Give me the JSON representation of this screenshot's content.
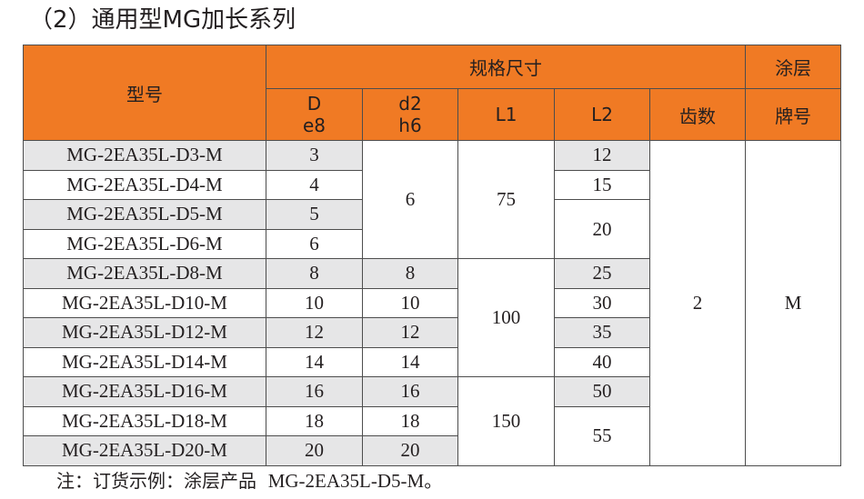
{
  "title": "（2）通用型MG加长系列",
  "table": {
    "header": {
      "model": "型号",
      "spec_group": "规格尺寸",
      "coating_group": "涂层",
      "D_name": "D",
      "D_tol": "e8",
      "d2_name": "d2",
      "d2_tol": "h6",
      "L1": "L1",
      "L2": "L2",
      "teeth": "齿数",
      "coating_brand": "牌号"
    },
    "rows": [
      {
        "model": "MG-2EA35L-D3-M",
        "D": "3"
      },
      {
        "model": "MG-2EA35L-D4-M",
        "D": "4"
      },
      {
        "model": "MG-2EA35L-D5-M",
        "D": "5"
      },
      {
        "model": "MG-2EA35L-D6-M",
        "D": "6"
      },
      {
        "model": "MG-2EA35L-D8-M",
        "D": "8",
        "d2": "8"
      },
      {
        "model": "MG-2EA35L-D10-M",
        "D": "10",
        "d2": "10"
      },
      {
        "model": "MG-2EA35L-D12-M",
        "D": "12",
        "d2": "12"
      },
      {
        "model": "MG-2EA35L-D14-M",
        "D": "14",
        "d2": "14"
      },
      {
        "model": "MG-2EA35L-D16-M",
        "D": "16",
        "d2": "16"
      },
      {
        "model": "MG-2EA35L-D18-M",
        "D": "18",
        "d2": "18"
      },
      {
        "model": "MG-2EA35L-D20-M",
        "D": "20",
        "d2": "20"
      }
    ],
    "merged": {
      "d2_first4": "6",
      "L1_group1": "75",
      "L1_group2": "100",
      "L1_group3": "150",
      "L2": [
        "12",
        "15",
        "20",
        "25",
        "30",
        "35",
        "40",
        "50",
        "55"
      ],
      "teeth": "2",
      "coating": "M"
    }
  },
  "note": {
    "prefix": "注：订货示例：涂层产品",
    "example": "MG-2EA35L-D5-M",
    "suffix": "。"
  }
}
